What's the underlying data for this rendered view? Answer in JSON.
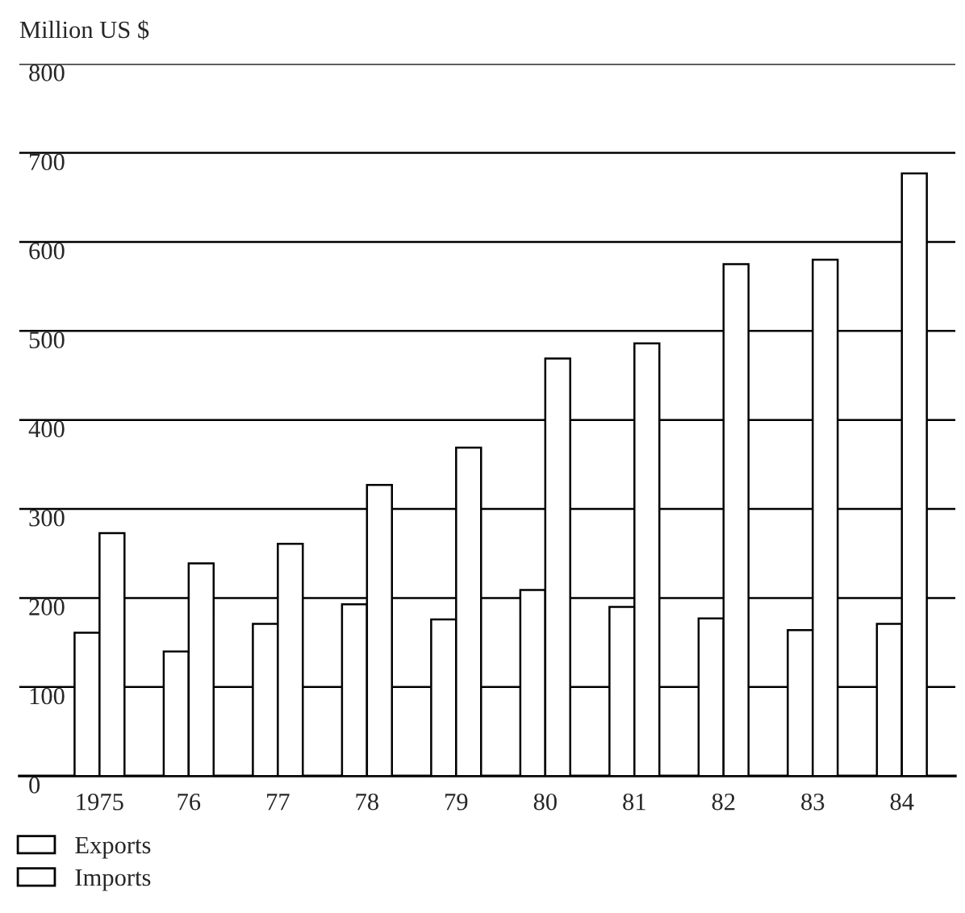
{
  "chart_data": {
    "type": "bar",
    "ylabel": "Million US $",
    "categories": [
      "1975",
      "76",
      "77",
      "78",
      "79",
      "80",
      "81",
      "82",
      "83",
      "84"
    ],
    "series": [
      {
        "name": "Exports",
        "color": "#ffffff",
        "values": [
          161,
          140,
          171,
          193,
          176,
          209,
          190,
          177,
          164,
          171
        ]
      },
      {
        "name": "Imports",
        "color": "#ffffff",
        "values": [
          273,
          239,
          261,
          327,
          369,
          469,
          486,
          575,
          580,
          677
        ]
      }
    ],
    "ylim": [
      0,
      800
    ],
    "yticks": [
      0,
      100,
      200,
      300,
      400,
      500,
      600,
      700,
      800
    ],
    "grid": "y",
    "legend": "bottom left"
  }
}
